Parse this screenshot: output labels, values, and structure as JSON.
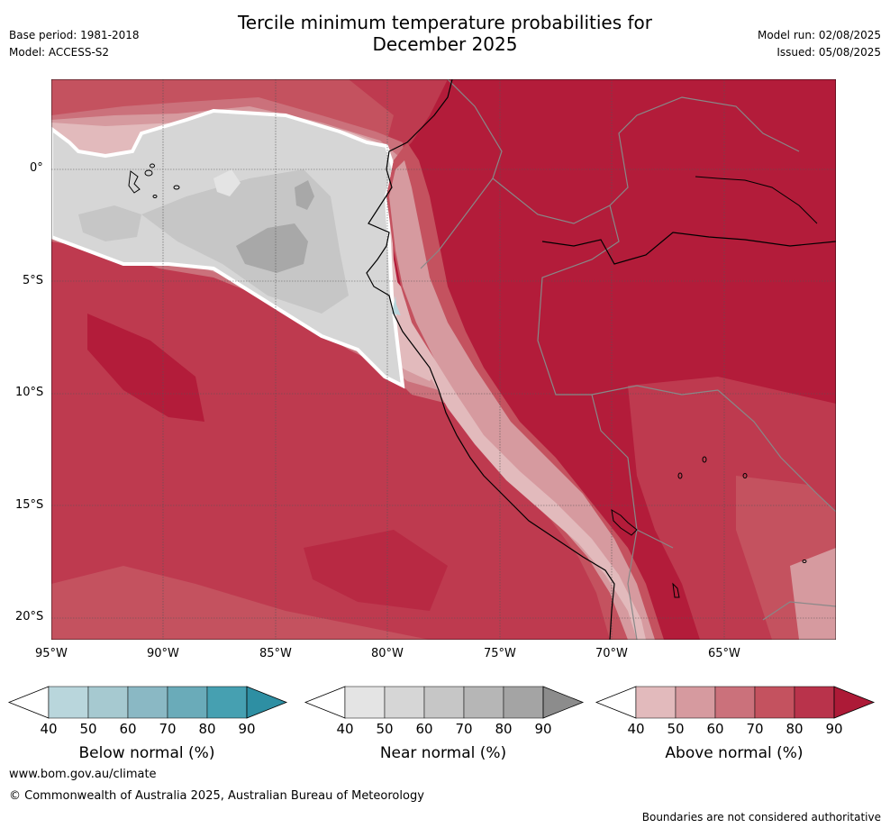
{
  "title": {
    "line1": "Tercile minimum temperature probabilities for",
    "line2": "December 2025"
  },
  "header": {
    "base_period": "Base period: 1981-2018",
    "model": "Model: ACCESS-S2",
    "model_run": "Model run: 02/08/2025",
    "issued": "Issued: 05/08/2025"
  },
  "map": {
    "lon_labels": [
      "95°W",
      "90°W",
      "85°W",
      "80°W",
      "75°W",
      "70°W",
      "65°W"
    ],
    "lat_labels": [
      "0°",
      "5°S",
      "10°S",
      "15°S",
      "20°S"
    ],
    "lon_range": [
      -95,
      -60
    ],
    "lat_range": [
      -21,
      4
    ],
    "region": "Ecuador, Peru, Bolivia and eastern tropical Pacific",
    "dominant_category": "above normal",
    "colors": {
      "above_90": "#b31c3a",
      "above_80": "#be3a4f",
      "above_70": "#c4525f",
      "above_60": "#cb717b",
      "above_50": "#d69a9f",
      "above_40": "#e2babc",
      "near_60": "#c6c6c6",
      "near_50": "#d6d6d6",
      "near_70": "#a8a8a8",
      "near_40": "#e4e4e4",
      "below_40": "#b9d6dc",
      "coast": "#000000",
      "border": "#888888"
    }
  },
  "colorbars": [
    {
      "label": "Below normal (%)",
      "ticks": [
        "40",
        "50",
        "60",
        "70",
        "80",
        "90"
      ],
      "colors": [
        "#ffffff",
        "#b9d6dc",
        "#a6c9d0",
        "#8ab8c4",
        "#6aabb9",
        "#46a0b1",
        "#2e8fa3"
      ]
    },
    {
      "label": "Near normal (%)",
      "ticks": [
        "40",
        "50",
        "60",
        "70",
        "80",
        "90"
      ],
      "colors": [
        "#ffffff",
        "#e4e4e4",
        "#d6d6d6",
        "#c6c6c6",
        "#b6b6b6",
        "#a4a4a4",
        "#8c8c8c"
      ]
    },
    {
      "label": "Above normal (%)",
      "ticks": [
        "40",
        "50",
        "60",
        "70",
        "80",
        "90"
      ],
      "colors": [
        "#ffffff",
        "#e2babc",
        "#d69a9f",
        "#cb717b",
        "#c4525f",
        "#b9334b",
        "#ad1a37"
      ]
    }
  ],
  "footer": {
    "website": "www.bom.gov.au/climate",
    "copyright": "© Commonwealth of Australia 2025, Australian Bureau of Meteorology",
    "disclaimer": "Boundaries are not considered authoritative"
  }
}
